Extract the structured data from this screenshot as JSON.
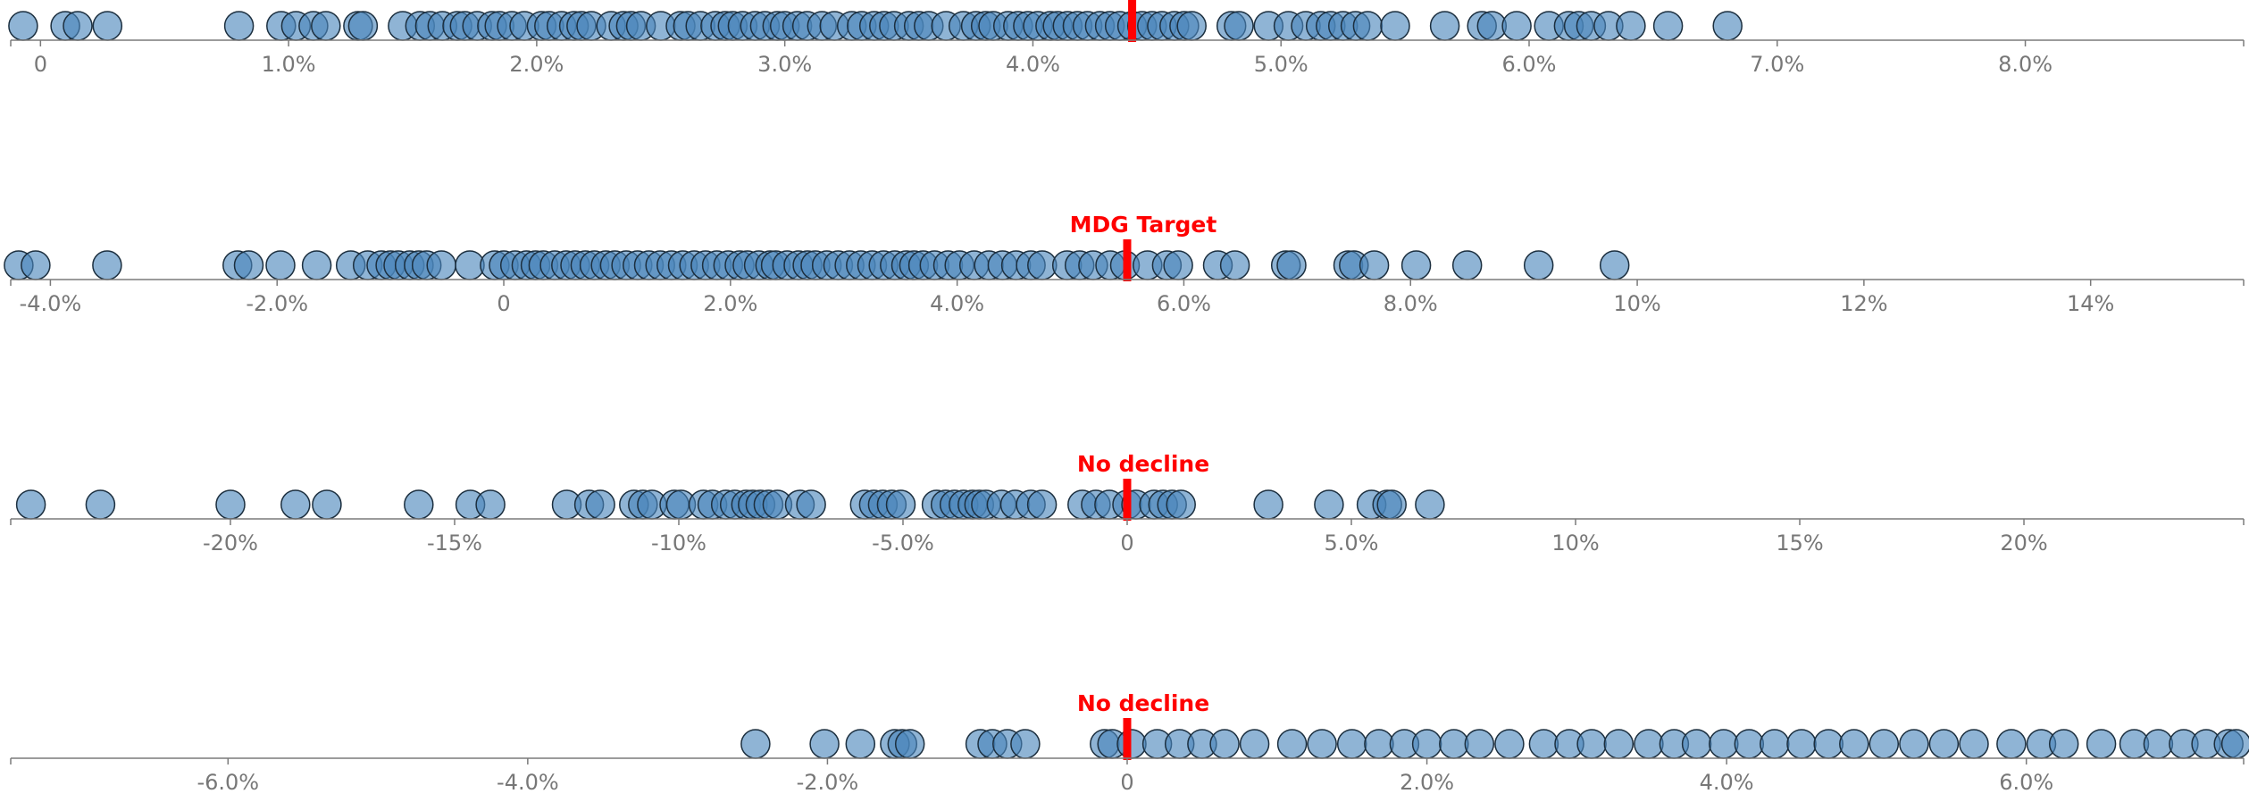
{
  "style": {
    "dot_color": "#4a86bb",
    "target_color": "#ff0000",
    "axis_color": "#777777"
  },
  "chart_data": [
    {
      "type": "scatter",
      "xlim": [
        -0.0012,
        0.0888
      ],
      "target": 0.044,
      "target_label": "",
      "ticks": [
        0,
        0.01,
        0.02,
        0.03,
        0.04,
        0.05,
        0.06,
        0.07,
        0.08
      ],
      "tick_labels": [
        "0",
        "1.0%",
        "2.0%",
        "3.0%",
        "4.0%",
        "5.0%",
        "6.0%",
        "7.0%",
        "8.0%"
      ],
      "values": [
        -0.0007,
        0.001,
        0.0015,
        0.0027,
        0.008,
        0.0097,
        0.0103,
        0.011,
        0.0115,
        0.0128,
        0.013,
        0.0146,
        0.0153,
        0.0157,
        0.0162,
        0.0168,
        0.0171,
        0.0176,
        0.0182,
        0.0185,
        0.019,
        0.0195,
        0.0202,
        0.0205,
        0.021,
        0.0215,
        0.0218,
        0.0222,
        0.023,
        0.0235,
        0.0238,
        0.0242,
        0.025,
        0.0258,
        0.0261,
        0.0266,
        0.0272,
        0.0276,
        0.0279,
        0.0283,
        0.0288,
        0.0292,
        0.0297,
        0.03,
        0.0305,
        0.0309,
        0.0315,
        0.032,
        0.0327,
        0.0331,
        0.0336,
        0.034,
        0.0344,
        0.035,
        0.0354,
        0.0358,
        0.0365,
        0.0372,
        0.0377,
        0.0381,
        0.0384,
        0.039,
        0.0394,
        0.0398,
        0.0402,
        0.0407,
        0.041,
        0.0414,
        0.0418,
        0.0422,
        0.0427,
        0.0431,
        0.0435,
        0.044,
        0.0444,
        0.0448,
        0.0452,
        0.0457,
        0.0461,
        0.0464,
        0.048,
        0.0483,
        0.0495,
        0.0503,
        0.051,
        0.0516,
        0.052,
        0.0525,
        0.053,
        0.0535,
        0.0546,
        0.0566,
        0.0581,
        0.0585,
        0.0595,
        0.0608,
        0.0616,
        0.062,
        0.0625,
        0.0632,
        0.0641,
        0.0656,
        0.068
      ]
    },
    {
      "type": "scatter",
      "xlim": [
        -0.0435,
        0.1535
      ],
      "target": 0.055,
      "target_label": "MDG Target",
      "ticks": [
        -0.04,
        -0.02,
        0,
        0.02,
        0.04,
        0.06,
        0.08,
        0.1,
        0.12,
        0.14
      ],
      "tick_labels": [
        "-4.0%",
        "-2.0%",
        "0",
        "2.0%",
        "4.0%",
        "6.0%",
        "8.0%",
        "10%",
        "12%",
        "14%"
      ],
      "values": [
        -0.0428,
        -0.0413,
        -0.035,
        -0.0235,
        -0.0225,
        -0.0197,
        -0.0165,
        -0.0135,
        -0.012,
        -0.0108,
        -0.01,
        -0.0093,
        -0.0083,
        -0.0075,
        -0.0068,
        -0.0055,
        -0.003,
        -0.0008,
        0.0,
        0.001,
        0.002,
        0.0028,
        0.0035,
        0.0045,
        0.0055,
        0.0063,
        0.0072,
        0.008,
        0.009,
        0.0098,
        0.0108,
        0.0118,
        0.0128,
        0.0138,
        0.0148,
        0.0158,
        0.0168,
        0.0178,
        0.0188,
        0.0198,
        0.0208,
        0.0215,
        0.0225,
        0.0235,
        0.024,
        0.025,
        0.026,
        0.0268,
        0.0275,
        0.0285,
        0.0295,
        0.0305,
        0.0315,
        0.0325,
        0.0335,
        0.0345,
        0.0355,
        0.0362,
        0.037,
        0.038,
        0.0392,
        0.0402,
        0.0415,
        0.0428,
        0.044,
        0.0452,
        0.0465,
        0.0475,
        0.0497,
        0.0508,
        0.052,
        0.0535,
        0.0548,
        0.0568,
        0.0585,
        0.0595,
        0.063,
        0.0645,
        0.069,
        0.0695,
        0.0745,
        0.075,
        0.0768,
        0.0805,
        0.085,
        0.0913,
        0.098
      ]
    },
    {
      "type": "scatter",
      "xlim": [
        -0.249,
        0.249
      ],
      "target": 0.0,
      "target_label": "No decline",
      "ticks": [
        -0.2,
        -0.15,
        -0.1,
        -0.05,
        0,
        0.05,
        0.1,
        0.15,
        0.2
      ],
      "tick_labels": [
        "-20%",
        "-15%",
        "-10%",
        "-5.0%",
        "0",
        "5.0%",
        "10%",
        "15%",
        "20%"
      ],
      "values": [
        -0.2445,
        -0.229,
        -0.2,
        -0.1855,
        -0.1785,
        -0.158,
        -0.1465,
        -0.142,
        -0.125,
        -0.12,
        -0.1175,
        -0.11,
        -0.108,
        -0.106,
        -0.101,
        -0.0995,
        -0.0945,
        -0.0925,
        -0.0895,
        -0.0875,
        -0.085,
        -0.0835,
        -0.0818,
        -0.08,
        -0.078,
        -0.073,
        -0.0705,
        -0.0585,
        -0.0565,
        -0.0545,
        -0.0525,
        -0.0505,
        -0.0425,
        -0.0405,
        -0.0385,
        -0.0365,
        -0.0345,
        -0.033,
        -0.0315,
        -0.028,
        -0.025,
        -0.0215,
        -0.019,
        -0.01,
        -0.007,
        -0.004,
        0.0,
        0.002,
        0.006,
        0.008,
        0.01,
        0.012,
        0.0315,
        0.045,
        0.0545,
        0.058,
        0.059,
        0.0675
      ]
    },
    {
      "type": "scatter",
      "xlim": [
        -0.0745,
        0.0745
      ],
      "target": 0.0,
      "target_label": "No decline",
      "ticks": [
        -0.06,
        -0.04,
        -0.02,
        0,
        0.02,
        0.04,
        0.06
      ],
      "tick_labels": [
        "-6.0%",
        "-4.0%",
        "-2.0%",
        "0",
        "2.0%",
        "4.0%",
        "6.0%"
      ],
      "values": [
        -0.0248,
        -0.0202,
        -0.0178,
        -0.0155,
        -0.015,
        -0.0145,
        -0.0098,
        -0.009,
        -0.008,
        -0.0068,
        -0.0015,
        -0.001,
        0.0003,
        0.002,
        0.0035,
        0.005,
        0.0065,
        0.0085,
        0.011,
        0.013,
        0.015,
        0.0168,
        0.0185,
        0.02,
        0.0218,
        0.0235,
        0.0255,
        0.0278,
        0.0295,
        0.031,
        0.0328,
        0.0348,
        0.0365,
        0.038,
        0.0398,
        0.0415,
        0.0432,
        0.045,
        0.0468,
        0.0485,
        0.0505,
        0.0525,
        0.0545,
        0.0565,
        0.059,
        0.061,
        0.0625,
        0.065,
        0.0672,
        0.0688,
        0.0705,
        0.072,
        0.0735,
        0.074
      ]
    }
  ]
}
